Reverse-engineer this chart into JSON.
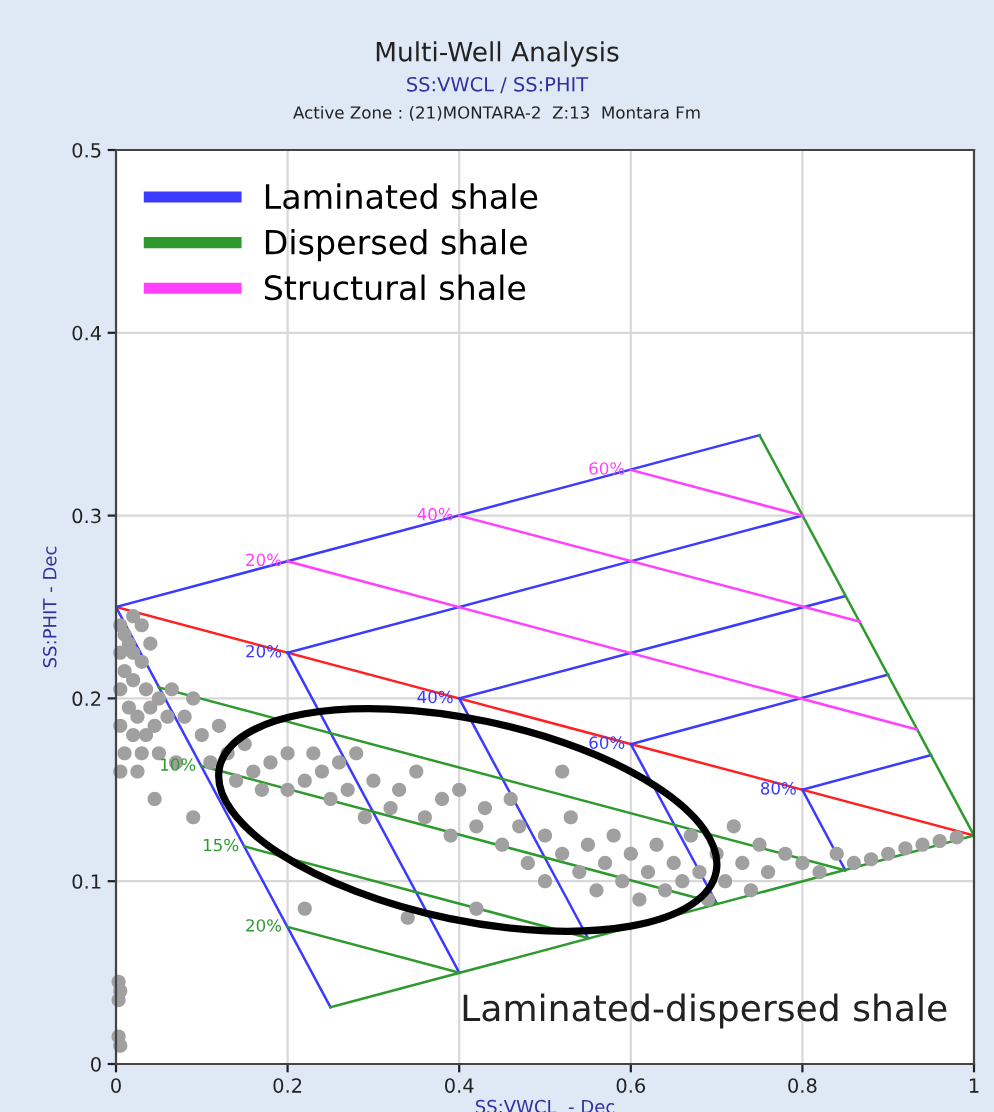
{
  "chart_data": {
    "type": "line",
    "title": "Multi-Well Analysis",
    "subtitle": "SS:VWCL / SS:PHIT",
    "xlabel": "SS:VWCL  - Dec",
    "ylabel": "SS:PHIT - Dec",
    "xlim": [
      0,
      1
    ],
    "ylim": [
      0,
      0.5
    ],
    "xticks": [
      0,
      0.2,
      0.4,
      0.6,
      0.8,
      1
    ],
    "yticks": [
      0,
      0.1,
      0.2,
      0.3,
      0.4,
      0.5
    ],
    "grid": true,
    "legend": "top left",
    "marker": "none",
    "line_style": "solid",
    "series": [
      {
        "color": "#ff2020",
        "x": [
          0,
          1
        ],
        "values": [
          0.25,
          0.125
        ]
      },
      {
        "name": "Laminated shale",
        "color": "#3b3bff",
        "x": [
          0,
          0.75
        ],
        "values": [
          0.25,
          0.344
        ]
      },
      {
        "color": "#3b3bff",
        "x": [
          0,
          0.25
        ],
        "values": [
          0.25,
          0.031
        ]
      },
      {
        "color": "#3b3bff",
        "x": [
          0.2,
          0.8
        ],
        "values": [
          0.225,
          0.3
        ]
      },
      {
        "color": "#3b3bff",
        "x": [
          0.4,
          0.85
        ],
        "values": [
          0.2,
          0.256
        ]
      },
      {
        "color": "#3b3bff",
        "x": [
          0.6,
          0.9
        ],
        "values": [
          0.175,
          0.213
        ]
      },
      {
        "color": "#3b3bff",
        "x": [
          0.8,
          0.95
        ],
        "values": [
          0.15,
          0.169
        ]
      },
      {
        "color": "#3b3bff",
        "x": [
          0.2,
          0.4
        ],
        "values": [
          0.225,
          0.05
        ]
      },
      {
        "color": "#3b3bff",
        "x": [
          0.4,
          0.55
        ],
        "values": [
          0.2,
          0.069
        ]
      },
      {
        "color": "#3b3bff",
        "x": [
          0.6,
          0.7
        ],
        "values": [
          0.175,
          0.088
        ]
      },
      {
        "color": "#3b3bff",
        "x": [
          0.8,
          0.85
        ],
        "values": [
          0.15,
          0.106
        ]
      },
      {
        "name": "Dispersed shale",
        "color": "#2e9a2e",
        "x": [
          0.75,
          1
        ],
        "values": [
          0.344,
          0.125
        ]
      },
      {
        "color": "#2e9a2e",
        "x": [
          0.25,
          1
        ],
        "values": [
          0.031,
          0.125
        ]
      },
      {
        "color": "#2e9a2e",
        "x": [
          0.05,
          0.849
        ],
        "values": [
          0.206,
          0.106
        ]
      },
      {
        "color": "#2e9a2e",
        "x": [
          0.1,
          0.7
        ],
        "values": [
          0.163,
          0.088
        ]
      },
      {
        "color": "#2e9a2e",
        "x": [
          0.15,
          0.55
        ],
        "values": [
          0.119,
          0.069
        ]
      },
      {
        "color": "#2e9a2e",
        "x": [
          0.2,
          0.4
        ],
        "values": [
          0.075,
          0.05
        ]
      },
      {
        "name": "Structural shale",
        "color": "#ff40ff",
        "x": [
          0.2,
          0.933
        ],
        "values": [
          0.275,
          0.183
        ]
      },
      {
        "color": "#ff40ff",
        "x": [
          0.4,
          0.867
        ],
        "values": [
          0.3,
          0.242
        ]
      },
      {
        "color": "#ff40ff",
        "x": [
          0.6,
          0.8
        ],
        "values": [
          0.325,
          0.3
        ]
      },
      {
        "type": "scatter",
        "marker": "circle",
        "color": "#a0a0a0",
        "x": [
          0.005,
          0.01,
          0.015,
          0.02,
          0.005,
          0.01,
          0.02,
          0.03,
          0.035,
          0.005,
          0.015,
          0.025,
          0.04,
          0.05,
          0.005,
          0.02,
          0.035,
          0.045,
          0.01,
          0.03,
          0.005,
          0.05,
          0.025,
          0.06,
          0.065,
          0.04,
          0.03,
          0.02,
          0.08,
          0.09,
          0.1,
          0.12,
          0.11,
          0.13,
          0.14,
          0.15,
          0.16,
          0.17,
          0.18,
          0.2,
          0.2,
          0.22,
          0.23,
          0.24,
          0.25,
          0.26,
          0.28,
          0.27,
          0.29,
          0.3,
          0.32,
          0.33,
          0.35,
          0.36,
          0.38,
          0.39,
          0.4,
          0.42,
          0.43,
          0.45,
          0.46,
          0.47,
          0.48,
          0.5,
          0.5,
          0.52,
          0.53,
          0.54,
          0.55,
          0.56,
          0.57,
          0.58,
          0.59,
          0.6,
          0.61,
          0.62,
          0.63,
          0.64,
          0.65,
          0.66,
          0.67,
          0.68,
          0.69,
          0.7,
          0.71,
          0.72,
          0.73,
          0.74,
          0.75,
          0.76,
          0.78,
          0.8,
          0.82,
          0.84,
          0.86,
          0.88,
          0.9,
          0.92,
          0.94,
          0.96,
          0.98,
          0.045,
          0.09,
          0.07,
          0.22,
          0.34,
          0.42,
          0.52,
          0.003,
          0.005,
          0.003,
          0.005,
          0.003
        ],
        "values": [
          0.24,
          0.235,
          0.23,
          0.225,
          0.225,
          0.215,
          0.21,
          0.22,
          0.205,
          0.205,
          0.195,
          0.19,
          0.195,
          0.2,
          0.185,
          0.18,
          0.18,
          0.185,
          0.17,
          0.17,
          0.16,
          0.17,
          0.16,
          0.19,
          0.205,
          0.23,
          0.24,
          0.245,
          0.19,
          0.2,
          0.18,
          0.185,
          0.165,
          0.17,
          0.155,
          0.175,
          0.16,
          0.15,
          0.165,
          0.17,
          0.15,
          0.155,
          0.17,
          0.16,
          0.145,
          0.165,
          0.17,
          0.15,
          0.135,
          0.155,
          0.14,
          0.15,
          0.16,
          0.135,
          0.145,
          0.125,
          0.15,
          0.13,
          0.14,
          0.12,
          0.145,
          0.13,
          0.11,
          0.125,
          0.1,
          0.115,
          0.135,
          0.105,
          0.12,
          0.095,
          0.11,
          0.125,
          0.1,
          0.115,
          0.09,
          0.105,
          0.12,
          0.095,
          0.11,
          0.1,
          0.125,
          0.105,
          0.09,
          0.115,
          0.1,
          0.13,
          0.11,
          0.095,
          0.12,
          0.105,
          0.115,
          0.11,
          0.105,
          0.115,
          0.11,
          0.112,
          0.115,
          0.118,
          0.12,
          0.122,
          0.124,
          0.145,
          0.135,
          0.165,
          0.085,
          0.08,
          0.085,
          0.16,
          0.045,
          0.04,
          0.015,
          0.01,
          0.035
        ]
      }
    ],
    "annotations": [
      "Active Zone : (21)MONTARA-2  Z:13  Montara Fm",
      {
        "text": "20%",
        "x": 0.2,
        "y": 0.275
      },
      {
        "text": "40%",
        "x": 0.4,
        "y": 0.3
      },
      {
        "text": "60%",
        "x": 0.6,
        "y": 0.325
      },
      {
        "text": "20%",
        "x": 0.2,
        "y": 0.225
      },
      {
        "text": "40%",
        "x": 0.4,
        "y": 0.2
      },
      {
        "text": "60%",
        "x": 0.6,
        "y": 0.175
      },
      {
        "text": "80%",
        "x": 0.8,
        "y": 0.15
      },
      {
        "text": "10%",
        "x": 0.1,
        "y": 0.163
      },
      {
        "text": "15%",
        "x": 0.15,
        "y": 0.119
      },
      {
        "text": "20%",
        "x": 0.2,
        "y": 0.075
      },
      "Laminated-dispersed shale"
    ]
  }
}
